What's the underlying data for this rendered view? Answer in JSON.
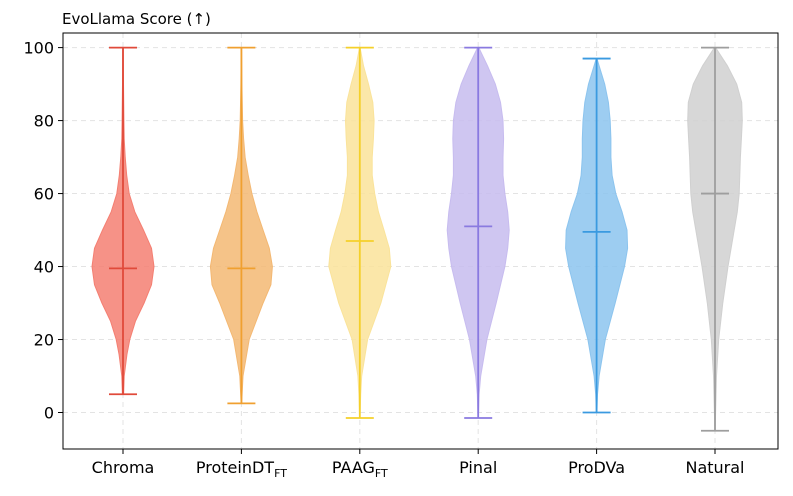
{
  "chart_data": {
    "type": "violin",
    "ylabel": "EvoLlama Score (↑)",
    "ylim": [
      -10,
      104
    ],
    "yticks": [
      0,
      20,
      40,
      60,
      80,
      100
    ],
    "grid": true,
    "categories": [
      {
        "name": "Chroma",
        "sub": ""
      },
      {
        "name": "ProteinDT",
        "sub": "FT"
      },
      {
        "name": "PAAG",
        "sub": "FT"
      },
      {
        "name": "Pinal",
        "sub": ""
      },
      {
        "name": "ProDVa",
        "sub": ""
      },
      {
        "name": "Natural",
        "sub": ""
      }
    ],
    "series": [
      {
        "name": "Chroma",
        "color": "#e04a3a",
        "fill": "#f47f72",
        "min": 5,
        "max": 100,
        "median": 39.5,
        "density": [
          [
            5,
            0.02
          ],
          [
            10,
            0.04
          ],
          [
            16,
            0.13
          ],
          [
            20,
            0.22
          ],
          [
            25,
            0.4
          ],
          [
            30,
            0.68
          ],
          [
            35,
            0.92
          ],
          [
            40,
            1.0
          ],
          [
            45,
            0.92
          ],
          [
            50,
            0.66
          ],
          [
            55,
            0.38
          ],
          [
            60,
            0.2
          ],
          [
            65,
            0.12
          ],
          [
            70,
            0.07
          ],
          [
            75,
            0.04
          ],
          [
            80,
            0.03
          ],
          [
            90,
            0.015
          ],
          [
            100,
            0.005
          ]
        ]
      },
      {
        "name": "ProteinDT_FT",
        "color": "#f0a030",
        "fill": "#f3b873",
        "min": 2.5,
        "max": 100,
        "median": 39.5,
        "density": [
          [
            2.5,
            0.01
          ],
          [
            10,
            0.05
          ],
          [
            20,
            0.25
          ],
          [
            30,
            0.7
          ],
          [
            35,
            0.95
          ],
          [
            40,
            1.0
          ],
          [
            45,
            0.9
          ],
          [
            50,
            0.7
          ],
          [
            55,
            0.5
          ],
          [
            60,
            0.34
          ],
          [
            65,
            0.22
          ],
          [
            70,
            0.12
          ],
          [
            75,
            0.07
          ],
          [
            80,
            0.04
          ],
          [
            90,
            0.015
          ],
          [
            100,
            0.005
          ]
        ]
      },
      {
        "name": "PAAG_FT",
        "color": "#f5d02a",
        "fill": "#fae39a",
        "min": -1.5,
        "max": 100,
        "median": 47,
        "density": [
          [
            -1.5,
            0.005
          ],
          [
            5,
            0.03
          ],
          [
            10,
            0.06
          ],
          [
            20,
            0.25
          ],
          [
            30,
            0.68
          ],
          [
            40,
            1.0
          ],
          [
            45,
            0.95
          ],
          [
            50,
            0.78
          ],
          [
            55,
            0.6
          ],
          [
            60,
            0.48
          ],
          [
            65,
            0.4
          ],
          [
            70,
            0.4
          ],
          [
            75,
            0.44
          ],
          [
            80,
            0.46
          ],
          [
            85,
            0.42
          ],
          [
            90,
            0.28
          ],
          [
            95,
            0.12
          ],
          [
            100,
            0.01
          ]
        ]
      },
      {
        "name": "Pinal",
        "color": "#8a7ae0",
        "fill": "#c7bcef",
        "min": -1.5,
        "max": 100,
        "median": 51,
        "density": [
          [
            -1.5,
            0.005
          ],
          [
            5,
            0.03
          ],
          [
            10,
            0.08
          ],
          [
            20,
            0.28
          ],
          [
            30,
            0.58
          ],
          [
            40,
            0.86
          ],
          [
            45,
            0.95
          ],
          [
            50,
            1.0
          ],
          [
            55,
            0.95
          ],
          [
            60,
            0.86
          ],
          [
            65,
            0.8
          ],
          [
            70,
            0.8
          ],
          [
            75,
            0.82
          ],
          [
            80,
            0.8
          ],
          [
            85,
            0.72
          ],
          [
            90,
            0.55
          ],
          [
            95,
            0.3
          ],
          [
            100,
            0.02
          ]
        ]
      },
      {
        "name": "ProDVa",
        "color": "#3a9ae0",
        "fill": "#8cc4ee",
        "min": 0,
        "max": 97,
        "median": 49.5,
        "density": [
          [
            0,
            0.01
          ],
          [
            5,
            0.03
          ],
          [
            10,
            0.08
          ],
          [
            20,
            0.28
          ],
          [
            30,
            0.6
          ],
          [
            40,
            0.9
          ],
          [
            45,
            1.0
          ],
          [
            50,
            0.98
          ],
          [
            55,
            0.82
          ],
          [
            60,
            0.62
          ],
          [
            65,
            0.5
          ],
          [
            70,
            0.46
          ],
          [
            75,
            0.46
          ],
          [
            80,
            0.44
          ],
          [
            85,
            0.38
          ],
          [
            90,
            0.26
          ],
          [
            95,
            0.08
          ],
          [
            97,
            0.01
          ]
        ]
      },
      {
        "name": "Natural",
        "color": "#9e9e9e",
        "fill": "#d0d0d0",
        "min": -5,
        "max": 100,
        "median": 60,
        "density": [
          [
            -5,
            0.005
          ],
          [
            0,
            0.02
          ],
          [
            10,
            0.05
          ],
          [
            20,
            0.12
          ],
          [
            30,
            0.25
          ],
          [
            40,
            0.42
          ],
          [
            50,
            0.62
          ],
          [
            55,
            0.72
          ],
          [
            60,
            0.78
          ],
          [
            65,
            0.8
          ],
          [
            70,
            0.82
          ],
          [
            75,
            0.85
          ],
          [
            80,
            0.88
          ],
          [
            85,
            0.86
          ],
          [
            90,
            0.7
          ],
          [
            95,
            0.4
          ],
          [
            100,
            0.02
          ]
        ]
      }
    ]
  }
}
